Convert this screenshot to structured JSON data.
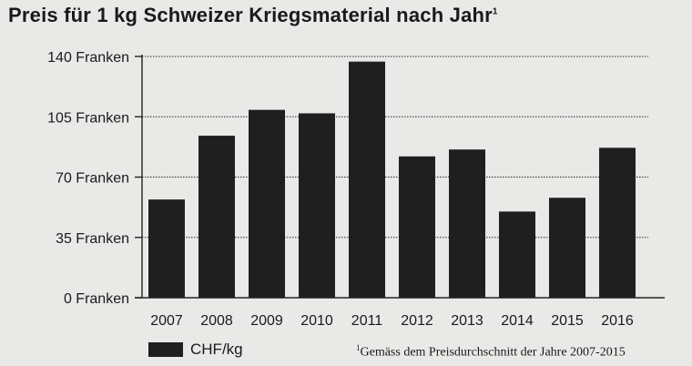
{
  "chart_data": {
    "type": "bar",
    "title": "Preis für 1 kg Schweizer Kriegsmaterial nach Jahr",
    "title_footnote_mark": "1",
    "categories": [
      "2007",
      "2008",
      "2009",
      "2010",
      "2011",
      "2012",
      "2013",
      "2014",
      "2015",
      "2016"
    ],
    "series": [
      {
        "name": "CHF/kg",
        "values": [
          57,
          94,
          109,
          107,
          137,
          82,
          86,
          50,
          58,
          87
        ],
        "color": "#1f1f1f"
      }
    ],
    "y_ticks": [
      {
        "value": 0,
        "label": "0 Franken"
      },
      {
        "value": 35,
        "label": "35 Franken"
      },
      {
        "value": 70,
        "label": "70 Franken"
      },
      {
        "value": 105,
        "label": "105 Franken"
      },
      {
        "value": 140,
        "label": "140 Franken"
      }
    ],
    "ylim": [
      0,
      140
    ],
    "xlabel": "",
    "ylabel": "",
    "grid": "dotted horizontal",
    "legend": {
      "label": "CHF/kg",
      "placement": "bottom-left"
    },
    "footnote": {
      "mark": "1",
      "text": "Gemäss dem Preisdurchschnitt der Jahre 2007-2015"
    }
  }
}
